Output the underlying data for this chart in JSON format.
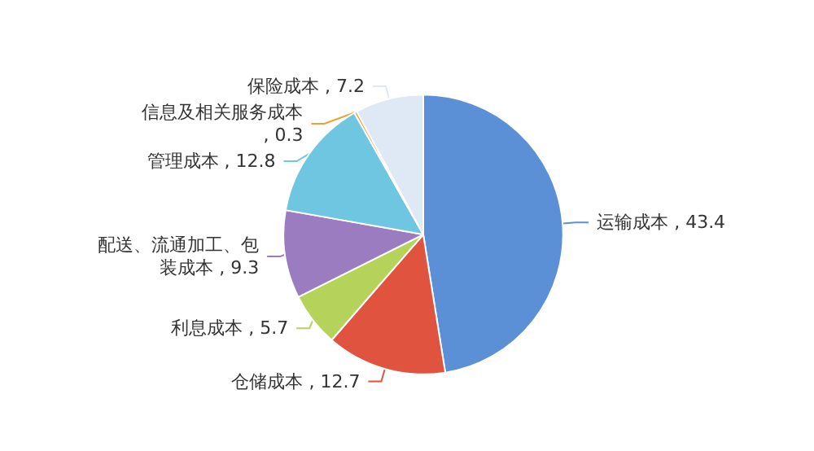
{
  "chart_data": {
    "type": "pie",
    "categories": [
      "运输成本",
      "仓储成本",
      "利息成本",
      "配送、流通加工、包装成本",
      "管理成本",
      "信息及相关服务成本",
      "保险成本"
    ],
    "values": [
      43.4,
      12.7,
      5.7,
      9.3,
      12.8,
      0.3,
      7.2
    ],
    "value_labels": [
      ", 43.4",
      ", 12.7",
      ", 5.7",
      ", 9.3",
      ", 12.8",
      ", 0.3",
      ", 7.2"
    ],
    "colors": [
      "#5b8fd6",
      "#e0533f",
      "#b5d35a",
      "#9b7cc1",
      "#6fc6e0",
      "#f0a030",
      "#dfe8f5"
    ],
    "legend": false
  }
}
